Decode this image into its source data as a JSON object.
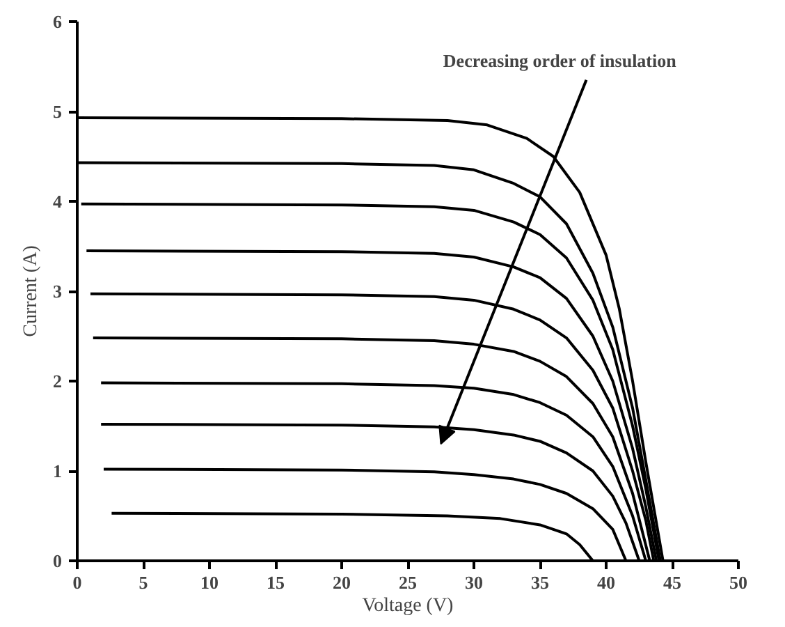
{
  "chart_data": {
    "type": "line",
    "xlabel": "Voltage (V)",
    "ylabel": "Current (A)",
    "xlim": [
      0,
      50
    ],
    "ylim": [
      0,
      6
    ],
    "xticks": [
      0,
      5,
      10,
      15,
      20,
      25,
      30,
      35,
      40,
      45,
      50
    ],
    "yticks": [
      0,
      1,
      2,
      3,
      4,
      5,
      6
    ],
    "grid": false,
    "marker": "none",
    "line_style": "solid",
    "annotations": [
      "Decreasing order of insulation"
    ],
    "series": [
      {
        "color": "#000000",
        "x": [
          0,
          20,
          28,
          31,
          34,
          36,
          38,
          40,
          41,
          42,
          43,
          44.3
        ],
        "values": [
          4.93,
          4.92,
          4.9,
          4.85,
          4.7,
          4.5,
          4.1,
          3.4,
          2.8,
          2.0,
          1.1,
          0
        ]
      },
      {
        "color": "#000000",
        "x": [
          0,
          20,
          27,
          30,
          33,
          35,
          37,
          39,
          40.5,
          42,
          43,
          44.1
        ],
        "values": [
          4.43,
          4.42,
          4.4,
          4.35,
          4.2,
          4.05,
          3.75,
          3.2,
          2.6,
          1.7,
          0.9,
          0
        ]
      },
      {
        "color": "#000000",
        "x": [
          0.3,
          20,
          27,
          30,
          33,
          35,
          37,
          39,
          40.5,
          42,
          43,
          44
        ],
        "values": [
          3.97,
          3.96,
          3.94,
          3.9,
          3.77,
          3.63,
          3.37,
          2.9,
          2.35,
          1.5,
          0.8,
          0
        ]
      },
      {
        "color": "#000000",
        "x": [
          0.7,
          20,
          27,
          30,
          33,
          35,
          37,
          39,
          40.5,
          42,
          43,
          43.8
        ],
        "values": [
          3.45,
          3.44,
          3.42,
          3.38,
          3.27,
          3.15,
          2.92,
          2.5,
          2.0,
          1.25,
          0.6,
          0
        ]
      },
      {
        "color": "#000000",
        "x": [
          1.0,
          20,
          27,
          30,
          33,
          35,
          37,
          39,
          40.5,
          42,
          43,
          43.6
        ],
        "values": [
          2.97,
          2.96,
          2.94,
          2.9,
          2.8,
          2.68,
          2.48,
          2.12,
          1.7,
          1.0,
          0.45,
          0
        ]
      },
      {
        "color": "#000000",
        "x": [
          1.2,
          20,
          27,
          30,
          33,
          35,
          37,
          39,
          40.5,
          42,
          43.3
        ],
        "values": [
          2.48,
          2.47,
          2.45,
          2.41,
          2.33,
          2.22,
          2.05,
          1.75,
          1.38,
          0.75,
          0
        ]
      },
      {
        "color": "#000000",
        "x": [
          1.8,
          20,
          27,
          30,
          33,
          35,
          37,
          39,
          40.5,
          42,
          43
        ],
        "values": [
          1.98,
          1.97,
          1.95,
          1.92,
          1.85,
          1.76,
          1.62,
          1.38,
          1.05,
          0.5,
          0
        ]
      },
      {
        "color": "#000000",
        "x": [
          1.8,
          20,
          27,
          30,
          33,
          35,
          37,
          39,
          40.5,
          41.5,
          42.5
        ],
        "values": [
          1.52,
          1.51,
          1.49,
          1.46,
          1.4,
          1.33,
          1.2,
          1.0,
          0.72,
          0.42,
          0
        ]
      },
      {
        "color": "#000000",
        "x": [
          2.0,
          20,
          27,
          30,
          33,
          35,
          37,
          39,
          40.5,
          41.5
        ],
        "values": [
          1.02,
          1.01,
          0.99,
          0.96,
          0.91,
          0.85,
          0.75,
          0.58,
          0.35,
          0
        ]
      },
      {
        "color": "#000000",
        "x": [
          2.6,
          20,
          28,
          32,
          35,
          37,
          38,
          39
        ],
        "values": [
          0.53,
          0.52,
          0.5,
          0.47,
          0.4,
          0.3,
          0.18,
          0
        ]
      }
    ]
  }
}
